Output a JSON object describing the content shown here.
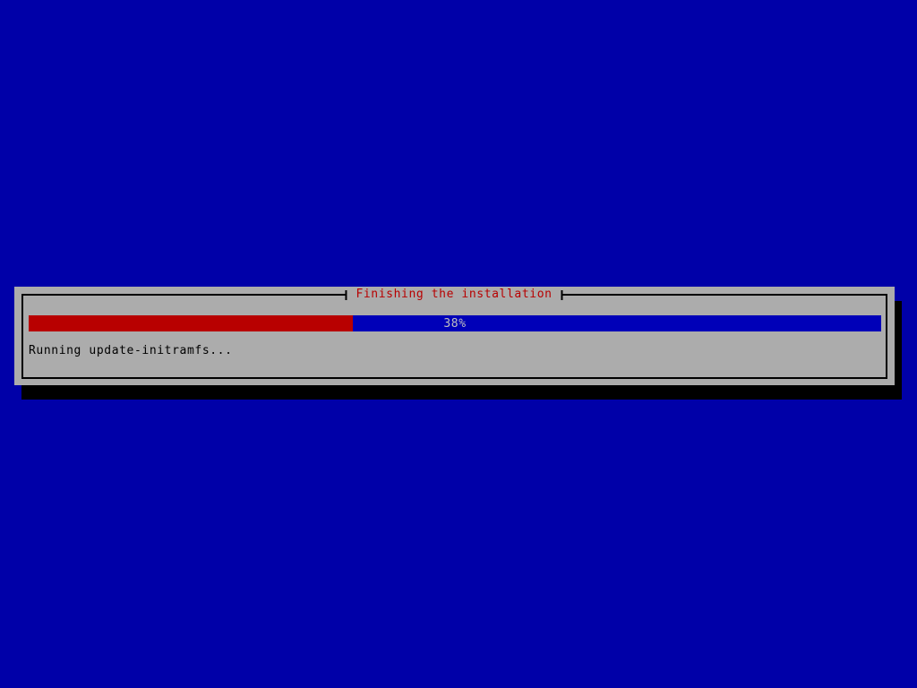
{
  "screen": {
    "background_color": "#0000a8"
  },
  "dialog": {
    "title": "Finishing the installation",
    "background_color": "#acacac",
    "title_color": "#b80000"
  },
  "progress": {
    "percent": 38,
    "percent_label": "38%",
    "status": "Running update-initramfs...",
    "fill_color": "#b80000",
    "track_color": "#0000b8",
    "percent_text_color": "#c0c0c0"
  }
}
